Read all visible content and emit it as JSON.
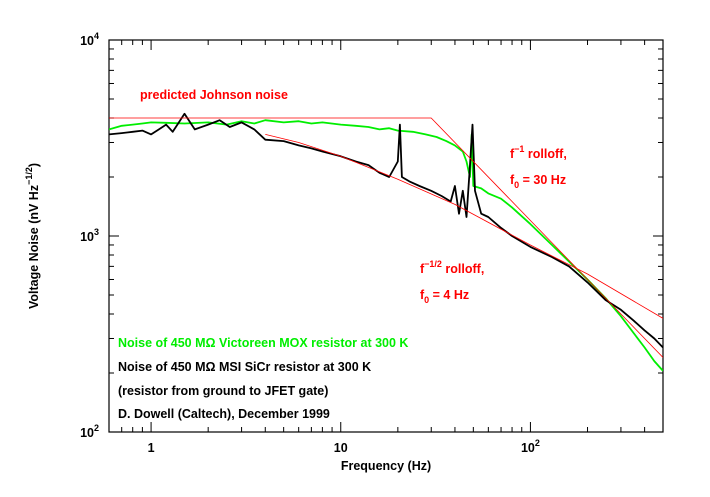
{
  "chart_data": {
    "type": "line",
    "xlabel": "Frequency (Hz)",
    "ylabel": {
      "parts": [
        {
          "text": "Voltage Noise (nV Hz"
        },
        {
          "text": "−1/2",
          "sup": true
        },
        {
          "text": ")"
        }
      ]
    },
    "log_x": true,
    "log_y": true,
    "xlim": [
      0.6,
      500
    ],
    "ylim": [
      100,
      10000
    ],
    "xticks": [
      1,
      10,
      {
        "value": 100,
        "label": "10",
        "exponent": "2"
      }
    ],
    "yticks": [
      {
        "value": 100,
        "label": "10",
        "exponent": "2"
      },
      {
        "value": 1000,
        "label": "10",
        "exponent": "3"
      },
      {
        "value": 10000,
        "label": "10",
        "exponent": "4"
      }
    ],
    "xminorticks": [
      0.7,
      0.8,
      0.9,
      2,
      3,
      4,
      5,
      6,
      7,
      8,
      9,
      20,
      30,
      40,
      50,
      60,
      70,
      80,
      90,
      200,
      300,
      400
    ],
    "yminorticks": [
      200,
      300,
      400,
      500,
      600,
      700,
      800,
      900,
      2000,
      3000,
      4000,
      5000,
      6000,
      7000,
      8000,
      9000
    ],
    "series": [
      {
        "name": "Noise of 450 MΩ Victoreen MOX resistor at 300 K",
        "color": "#00ee00",
        "x": [
          0.6,
          0.7,
          0.8,
          0.9,
          1,
          1.2,
          1.5,
          2,
          2.5,
          3,
          3.5,
          4,
          5,
          6,
          7,
          8,
          10,
          12,
          14,
          16,
          18,
          20,
          24,
          28,
          32,
          36,
          40,
          44,
          46,
          48,
          49,
          50,
          55,
          60,
          70,
          80,
          100,
          130,
          160,
          200,
          250,
          300,
          350,
          400,
          450,
          500
        ],
        "values": [
          3500,
          3650,
          3700,
          3750,
          3800,
          3780,
          3750,
          3800,
          3700,
          3850,
          3750,
          3900,
          3800,
          3850,
          3750,
          3800,
          3700,
          3650,
          3600,
          3500,
          3550,
          3450,
          3400,
          3300,
          3200,
          3050,
          2900,
          2700,
          2400,
          2000,
          3300,
          1800,
          1750,
          1650,
          1550,
          1400,
          1150,
          900,
          740,
          600,
          480,
          390,
          320,
          270,
          230,
          205
        ]
      },
      {
        "name": "Noise of 450 MΩ MSI SiCr resistor at 300 K",
        "color": "#000000",
        "x": [
          0.6,
          0.7,
          0.8,
          0.9,
          1,
          1.1,
          1.2,
          1.3,
          1.5,
          1.7,
          2,
          2.3,
          2.6,
          3,
          3.5,
          4,
          5,
          6,
          7,
          8,
          10,
          12,
          14,
          16,
          18,
          20,
          20.5,
          21,
          23,
          26,
          30,
          34,
          38,
          40,
          42,
          44,
          46,
          48,
          49.5,
          51,
          55,
          60,
          70,
          80,
          100,
          130,
          160,
          200,
          250,
          300,
          350,
          400,
          450,
          500
        ],
        "values": [
          3300,
          3350,
          3400,
          3450,
          3300,
          3500,
          3700,
          3400,
          4200,
          3500,
          3700,
          3900,
          3600,
          3800,
          3500,
          3100,
          3050,
          2900,
          2800,
          2700,
          2550,
          2400,
          2300,
          2100,
          2000,
          2400,
          3700,
          2000,
          1900,
          1800,
          1700,
          1600,
          1500,
          1800,
          1300,
          1700,
          1250,
          2300,
          3700,
          1700,
          1300,
          1250,
          1100,
          1000,
          880,
          780,
          700,
          580,
          470,
          420,
          370,
          330,
          300,
          270
        ]
      },
      {
        "color": "#ff0000",
        "x": [
          0.6,
          30,
          500
        ],
        "values": [
          4000,
          4000,
          240
        ]
      },
      {
        "color": "#ff0000",
        "x": [
          4,
          6,
          10,
          20,
          40,
          100,
          200,
          500
        ],
        "values": [
          3300,
          3000,
          2550,
          1950,
          1450,
          900,
          640,
          380
        ]
      }
    ],
    "annotations": [
      {
        "color": "#ff0000",
        "parts": [
          {
            "text": "predicted Johnson noise"
          }
        ]
      },
      {
        "color": "#ff0000",
        "parts": [
          {
            "text": "f"
          },
          {
            "text": "−1",
            "sup": true
          },
          {
            "text": " rolloff,"
          }
        ]
      },
      {
        "color": "#ff0000",
        "parts": [
          {
            "text": "f"
          },
          {
            "text": "0",
            "sub": true
          },
          {
            "text": " = 30 Hz"
          }
        ]
      },
      {
        "color": "#ff0000",
        "parts": [
          {
            "text": "f"
          },
          {
            "text": "−1/2",
            "sup": true
          },
          {
            "text": " rolloff,"
          }
        ]
      },
      {
        "color": "#ff0000",
        "parts": [
          {
            "text": "f"
          },
          {
            "text": "0",
            "sub": true
          },
          {
            "text": " = 4 Hz"
          }
        ]
      },
      {
        "color": "#000000",
        "parts": [
          {
            "text": "(resistor from ground to JFET gate)"
          }
        ]
      },
      {
        "color": "#000000",
        "parts": [
          {
            "text": "D. Dowell (Caltech), December 1999"
          }
        ]
      }
    ]
  }
}
